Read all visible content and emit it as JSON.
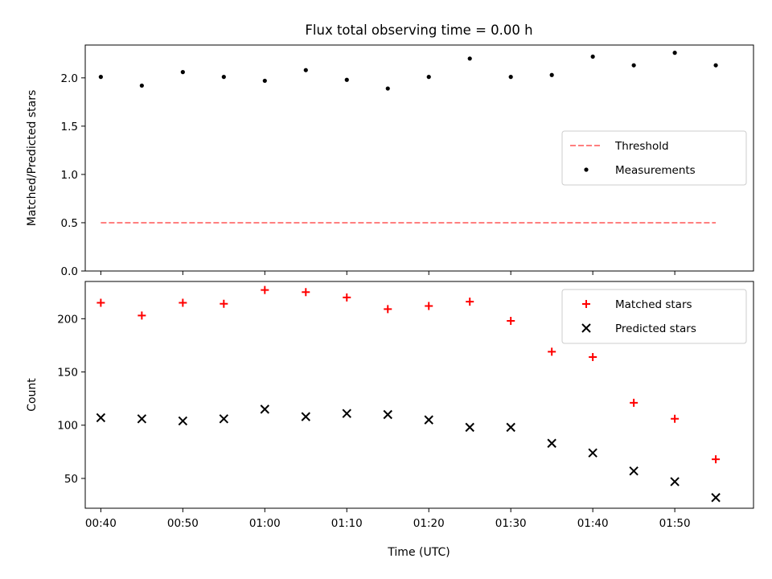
{
  "chart_data": {
    "type": "scatter",
    "title": "Flux total observing time = 0.00 h",
    "xlabel": "Time (UTC)",
    "x": [
      "00:40",
      "00:45",
      "00:50",
      "00:55",
      "01:00",
      "01:05",
      "01:10",
      "01:15",
      "01:20",
      "01:25",
      "01:30",
      "01:35",
      "01:40",
      "01:45",
      "01:50",
      "01:55"
    ],
    "xticks": [
      "00:40",
      "00:50",
      "01:00",
      "01:10",
      "01:20",
      "01:30",
      "01:40",
      "01:50"
    ],
    "xlim_minutes": [
      38.1,
      119.6
    ],
    "panels": [
      {
        "ylabel": "Matched/Predicted stars",
        "ylim": [
          0.0,
          2.34
        ],
        "yticks": [
          "0.0",
          "0.5",
          "1.0",
          "1.5",
          "2.0"
        ],
        "legend": "right",
        "series": [
          {
            "name": "Threshold",
            "kind": "dashed-line",
            "color": "#ff7f7f",
            "values": [
              0.5,
              0.5
            ]
          },
          {
            "name": "Measurements",
            "kind": "dot",
            "color": "#000000",
            "values": [
              2.01,
              1.92,
              2.06,
              2.01,
              1.97,
              2.08,
              1.98,
              1.89,
              2.01,
              2.2,
              2.01,
              2.03,
              2.22,
              2.13,
              2.26,
              2.13
            ]
          }
        ]
      },
      {
        "ylabel": "Count",
        "ylim": [
          22,
          235
        ],
        "yticks": [
          "50",
          "100",
          "150",
          "200"
        ],
        "legend": "top-right",
        "series": [
          {
            "name": "Matched stars",
            "kind": "plus",
            "color": "#ff0000",
            "values": [
              215,
              203,
              215,
              214,
              227,
              225,
              220,
              209,
              212,
              216,
              198,
              169,
              164,
              121,
              106,
              68
            ]
          },
          {
            "name": "Predicted stars",
            "kind": "cross",
            "color": "#000000",
            "values": [
              107,
              106,
              104,
              106,
              115,
              108,
              111,
              110,
              105,
              98,
              98,
              83,
              74,
              57,
              47,
              32
            ]
          }
        ]
      }
    ]
  }
}
